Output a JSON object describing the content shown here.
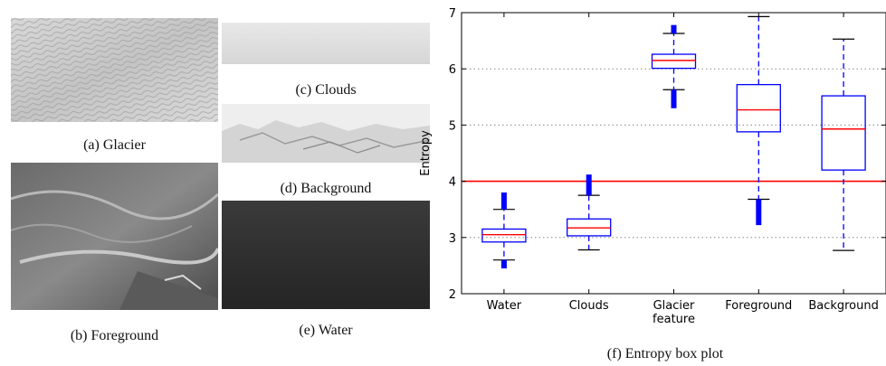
{
  "captions": {
    "glacier": "(a) Glacier",
    "foreground": "(b) Foreground",
    "clouds": "(c) Clouds",
    "background": "(d) Background",
    "water": "(e) Water",
    "boxplot": "(f) Entropy box plot"
  },
  "chart_data": {
    "type": "boxplot",
    "ylabel": "Entropy",
    "ylim": [
      2,
      7
    ],
    "yticks": [
      2,
      3,
      4,
      5,
      6,
      7
    ],
    "grid": "dotted horizontal",
    "threshold_line": 4,
    "categories": [
      "Water",
      "Clouds",
      "Glacier\nfeature",
      "Foreground",
      "Background"
    ],
    "category_labels": [
      [
        "Water"
      ],
      [
        "Clouds"
      ],
      [
        "Glacier",
        "feature"
      ],
      [
        "Foreground"
      ],
      [
        "Background"
      ]
    ],
    "boxes": [
      {
        "whisker_low": 2.6,
        "q1": 2.92,
        "median": 3.05,
        "q3": 3.15,
        "whisker_high": 3.5,
        "fliers_low": [
          2.45,
          2.6
        ],
        "fliers_high": [
          3.5,
          3.8
        ]
      },
      {
        "whisker_low": 2.78,
        "q1": 3.03,
        "median": 3.17,
        "q3": 3.33,
        "whisker_high": 3.75,
        "fliers_low": [],
        "fliers_high": [
          3.75,
          4.12
        ]
      },
      {
        "whisker_low": 5.63,
        "q1": 6.01,
        "median": 6.15,
        "q3": 6.26,
        "whisker_high": 6.63,
        "fliers_low": [
          5.3,
          5.63
        ],
        "fliers_high": [
          6.63,
          6.78
        ]
      },
      {
        "whisker_low": 3.68,
        "q1": 4.88,
        "median": 5.27,
        "q3": 5.72,
        "whisker_high": 6.93,
        "fliers_low": [
          3.22,
          3.68
        ],
        "fliers_high": []
      },
      {
        "whisker_low": 2.77,
        "q1": 4.2,
        "median": 4.93,
        "q3": 5.52,
        "whisker_high": 6.53,
        "fliers_low": [],
        "fliers_high": []
      }
    ],
    "colors": {
      "box": "#0000ff",
      "median": "#ff0000",
      "threshold": "#ff0000",
      "grid": "#888888"
    }
  }
}
